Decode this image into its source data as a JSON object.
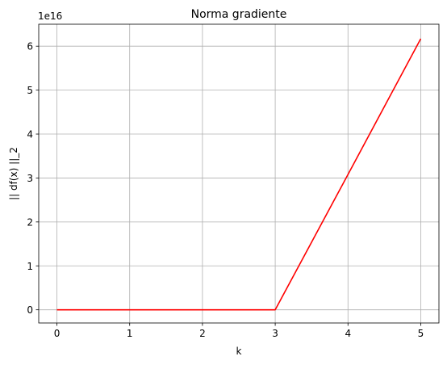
{
  "chart_data": {
    "type": "line",
    "title": "Norma gradiente",
    "xlabel": "k",
    "ylabel": "|| df(x) ||_2",
    "offset_label": "1e16",
    "xlim": [
      -0.25,
      5.25
    ],
    "ylim": [
      -0.3,
      6.5
    ],
    "x_ticks": [
      0,
      1,
      2,
      3,
      4,
      5
    ],
    "x_tick_labels": [
      "0",
      "1",
      "2",
      "3",
      "4",
      "5"
    ],
    "y_ticks": [
      0,
      1,
      2,
      3,
      4,
      5,
      6
    ],
    "y_tick_labels": [
      "0",
      "1",
      "2",
      "3",
      "4",
      "5",
      "6"
    ],
    "grid": true,
    "series": [
      {
        "color": "#ff0000",
        "x": [
          0,
          1,
          2,
          3,
          4,
          5
        ],
        "y": [
          0,
          0,
          0,
          0,
          3.08,
          6.17
        ]
      }
    ]
  }
}
